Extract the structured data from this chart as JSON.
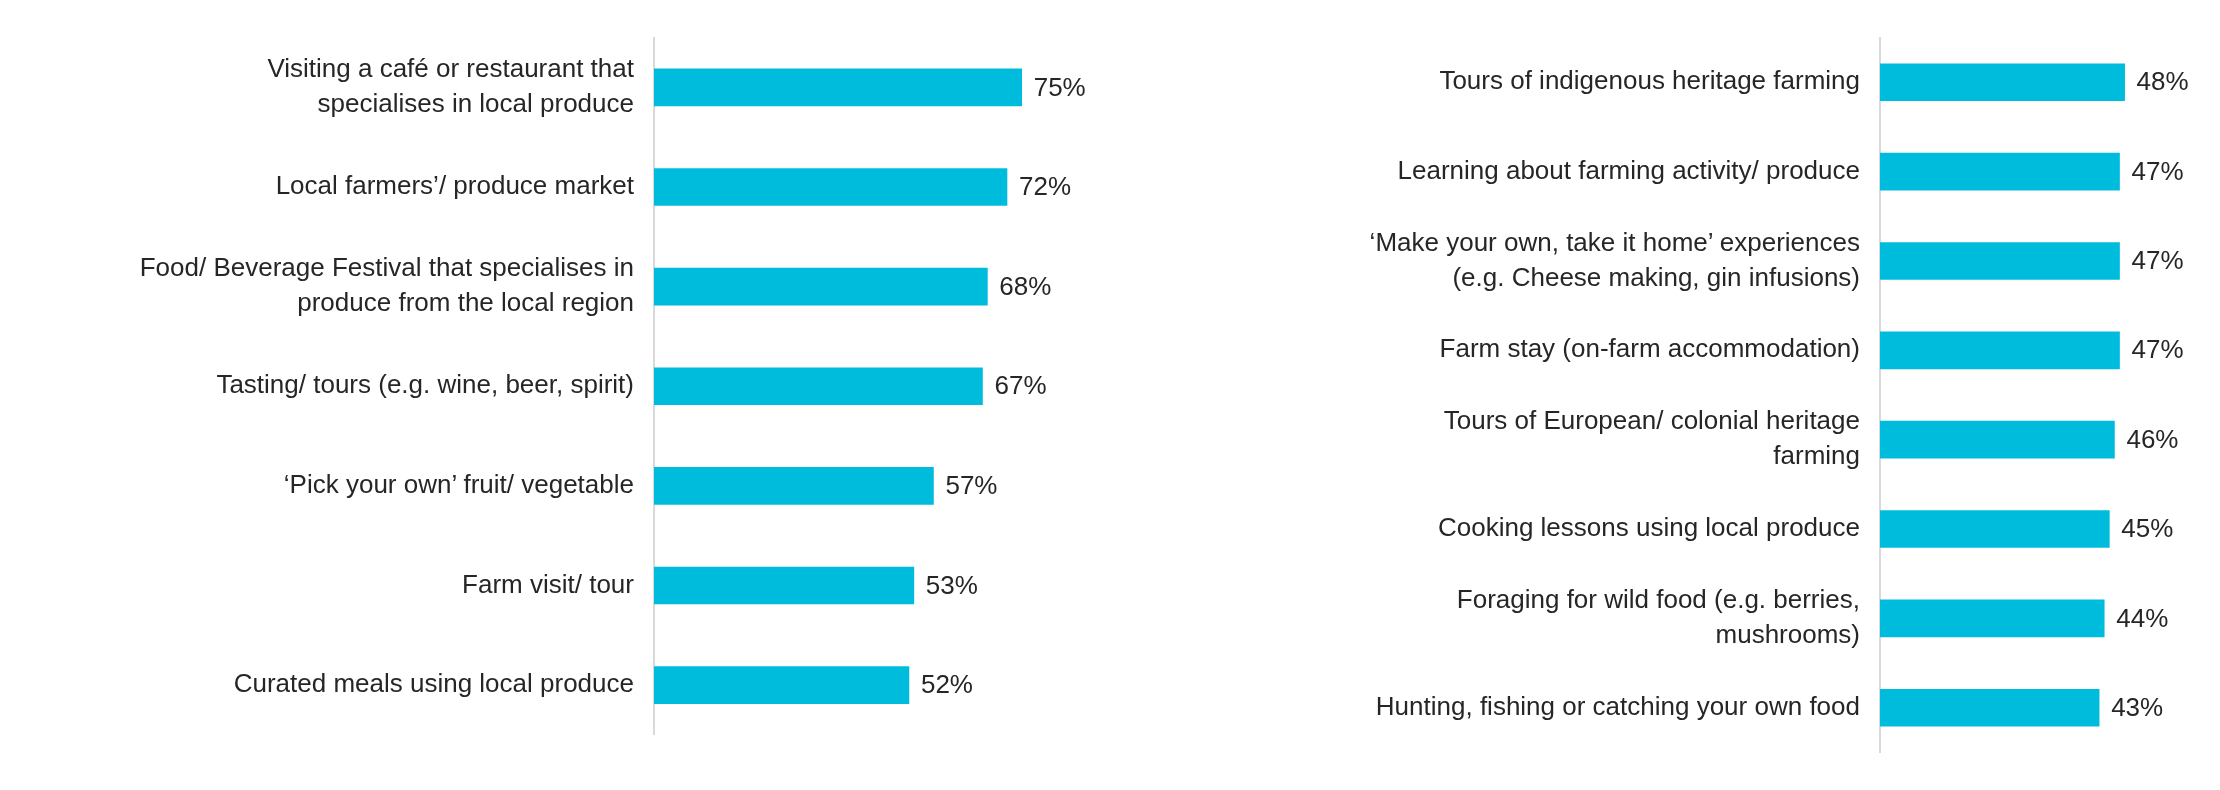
{
  "chart_data": [
    {
      "type": "bar",
      "orientation": "horizontal",
      "tick_labels": "y",
      "categories": [
        "Visiting a café or restaurant that\nspecialises in local produce",
        "Local farmers’/ produce market",
        "Food/ Beverage Festival that specialises in\nproduce from the local region",
        "Tasting/ tours (e.g. wine, beer, spirit)",
        "‘Pick your own’ fruit/ vegetable",
        "Farm visit/ tour",
        "Curated meals using local produce"
      ],
      "values": [
        75,
        72,
        68,
        67,
        57,
        53,
        52
      ],
      "value_labels": [
        "75%",
        "72%",
        "68%",
        "67%",
        "57%",
        "53%",
        "52%"
      ],
      "color": "#00bcdc"
    },
    {
      "type": "bar",
      "orientation": "horizontal",
      "tick_labels": "y",
      "categories": [
        "Tours of indigenous heritage farming",
        "Learning about farming activity/ produce",
        "‘Make your own, take it home’ experiences\n(e.g. Cheese making, gin infusions)",
        "Farm stay (on-farm accommodation)",
        "Tours of European/ colonial heritage\nfarming",
        "Cooking lessons using local produce",
        "Foraging for wild food (e.g. berries,\nmushrooms)",
        "Hunting, fishing or catching your own food"
      ],
      "values": [
        48,
        47,
        47,
        47,
        46,
        45,
        44,
        43
      ],
      "value_labels": [
        "48%",
        "47%",
        "47%",
        "47%",
        "46%",
        "45%",
        "44%",
        "43%"
      ],
      "color": "#00bcdc"
    }
  ]
}
